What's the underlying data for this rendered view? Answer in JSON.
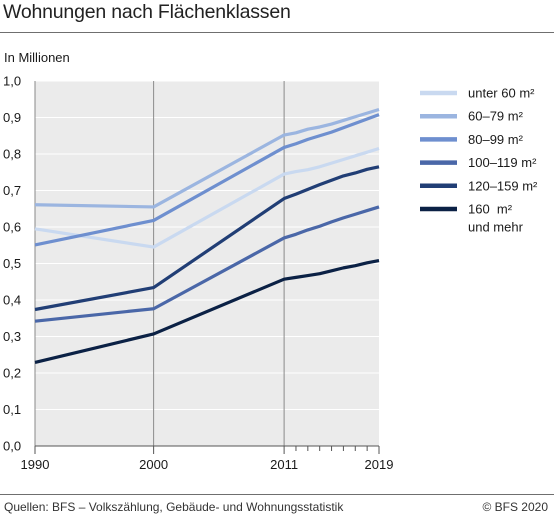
{
  "header": {
    "title": "Wohnungen nach Flächenklassen"
  },
  "footer": {
    "source": "Quellen: BFS – Volkszählung, Gebäude- und Wohnungsstatistik",
    "copyright": "© BFS 2020"
  },
  "chart_data": {
    "type": "line",
    "title": "Wohnungen nach Flächenklassen",
    "ylabel": "In Millionen",
    "xlabel": "",
    "xlim": [
      1990,
      2019
    ],
    "ylim": [
      0,
      1.0
    ],
    "x_ticks": [
      1990,
      2000,
      2011,
      2019
    ],
    "x_tick_labels": [
      "1990",
      "2000",
      "2011",
      "2019"
    ],
    "y_ticks": [
      0,
      0.1,
      0.2,
      0.3,
      0.4,
      0.5,
      0.6,
      0.7,
      0.8,
      0.9,
      1.0
    ],
    "y_tick_labels": [
      "0,0",
      "0,1",
      "0,2",
      "0,3",
      "0,4",
      "0,5",
      "0,6",
      "0,7",
      "0,8",
      "0,9",
      "1,0"
    ],
    "grid": true,
    "legend_position": "right",
    "x": [
      1990,
      2000,
      2011,
      2012,
      2013,
      2014,
      2015,
      2016,
      2017,
      2018,
      2019
    ],
    "series": [
      {
        "name": "unter 60 m²",
        "color": "#c9d9f0",
        "values": [
          0.595,
          0.545,
          0.745,
          0.752,
          0.757,
          0.765,
          0.775,
          0.785,
          0.795,
          0.805,
          0.815
        ]
      },
      {
        "name": "60–79 m²",
        "color": "#9bb5e0",
        "values": [
          0.661,
          0.655,
          0.852,
          0.858,
          0.868,
          0.874,
          0.882,
          0.892,
          0.902,
          0.912,
          0.922
        ]
      },
      {
        "name": "80–99 m²",
        "color": "#6e8fcf",
        "values": [
          0.551,
          0.618,
          0.818,
          0.828,
          0.84,
          0.85,
          0.86,
          0.872,
          0.884,
          0.896,
          0.908
        ]
      },
      {
        "name": "100–119 m²",
        "color": "#4a67a8",
        "values": [
          0.342,
          0.376,
          0.57,
          0.58,
          0.592,
          0.602,
          0.614,
          0.625,
          0.635,
          0.645,
          0.655
        ]
      },
      {
        "name": "120–159 m²",
        "color": "#213e75",
        "values": [
          0.374,
          0.434,
          0.678,
          0.69,
          0.703,
          0.716,
          0.728,
          0.74,
          0.748,
          0.758,
          0.765
        ]
      },
      {
        "name": "160  m²\nund mehr",
        "color": "#0b2145",
        "values": [
          0.229,
          0.307,
          0.457,
          0.462,
          0.467,
          0.472,
          0.48,
          0.488,
          0.494,
          0.502,
          0.508
        ]
      }
    ]
  }
}
